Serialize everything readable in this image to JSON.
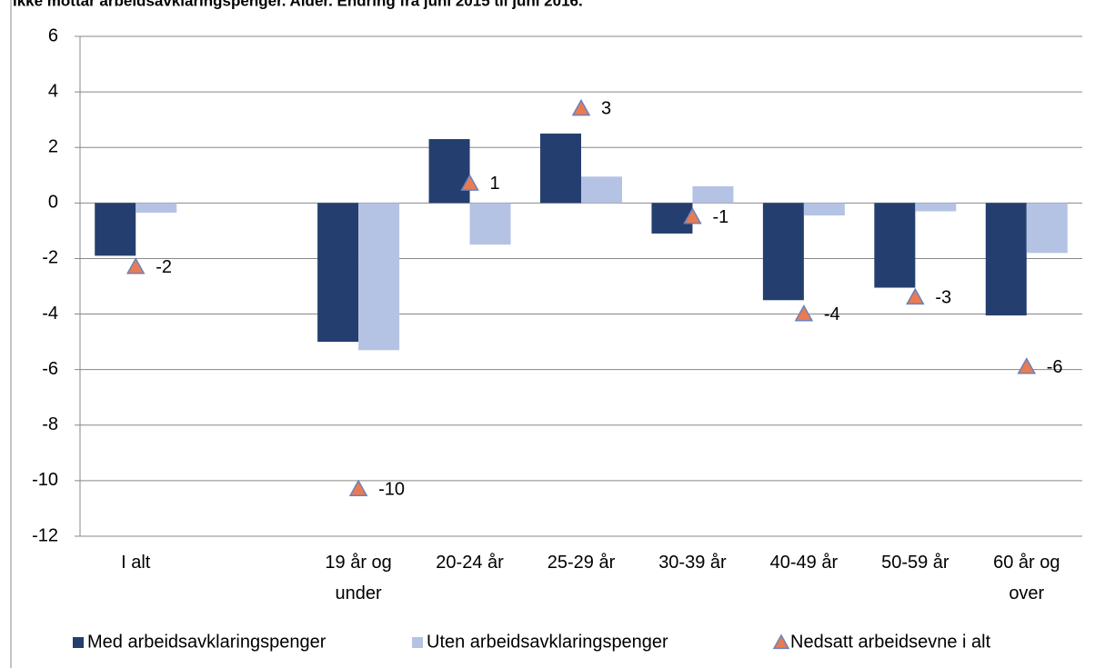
{
  "chart_data": {
    "type": "bar",
    "title": "ikke mottar arbeidsavklaringspenger. Alder. Endring fra juni 2015 til juni 2016.",
    "categories": [
      "I alt",
      null,
      "19 år og\nunder",
      "20-24 år",
      "25-29 år",
      "30-39 år",
      "40-49 år",
      "50-59 år",
      "60 år og\nover"
    ],
    "series": [
      {
        "name": "Med arbeidsavklaringspenger",
        "color": "#243f6f",
        "values": [
          -1.9,
          null,
          -5,
          2.3,
          2.5,
          -1.1,
          -3.5,
          -3.05,
          -4.05
        ]
      },
      {
        "name": "Uten arbeidsavklaringspenger",
        "color": "#b4c3e4",
        "values": [
          -0.35,
          null,
          -5.3,
          -1.5,
          0.95,
          0.6,
          -0.45,
          -0.3,
          -1.8
        ]
      },
      {
        "name": "Nedsatt arbeidsevne i alt",
        "color": "#e97b53",
        "marker": "triangle",
        "values": [
          -2.3,
          null,
          -10.3,
          0.7,
          3.4,
          -0.5,
          -4.0,
          -3.4,
          -5.9
        ],
        "value_labels": [
          "-2",
          null,
          "-10",
          "1",
          "3",
          "-1",
          "-4",
          "-3",
          "-6"
        ]
      }
    ],
    "ylim": [
      -12,
      6
    ],
    "yticks": [
      -12,
      -10,
      -8,
      -6,
      -4,
      -2,
      0,
      2,
      4,
      6
    ],
    "grid": true
  }
}
